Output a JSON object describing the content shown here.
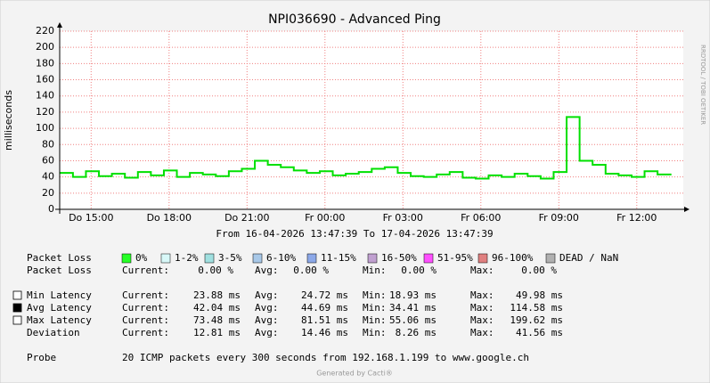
{
  "chart_data": {
    "type": "line",
    "title": "NPI036690 - Advanced Ping",
    "subtitle": "From 16-04-2026 13:47:39 To 17-04-2026 13:47:39",
    "y_label": "milliseconds",
    "side_label": "RRDTOOL / TOBI OETIKER",
    "footer": "Generated by Cacti®",
    "xlim": [
      13.79,
      37.79
    ],
    "xticks": [
      {
        "value": 15,
        "label": "Do 15:00"
      },
      {
        "value": 18,
        "label": "Do 18:00"
      },
      {
        "value": 21,
        "label": "Do 21:00"
      },
      {
        "value": 24,
        "label": "Fr 00:00"
      },
      {
        "value": 27,
        "label": "Fr 03:00"
      },
      {
        "value": 30,
        "label": "Fr 06:00"
      },
      {
        "value": 33,
        "label": "Fr 09:00"
      },
      {
        "value": 36,
        "label": "Fr 12:00"
      }
    ],
    "ylim": [
      0,
      220
    ],
    "yticks": [
      0,
      20,
      40,
      60,
      80,
      100,
      120,
      140,
      160,
      180,
      200,
      220
    ],
    "grid": true,
    "x": [
      13.8,
      14.3,
      14.8,
      15.3,
      15.8,
      16.3,
      16.8,
      17.3,
      17.8,
      18.3,
      18.8,
      19.3,
      19.8,
      20.3,
      20.8,
      21.3,
      21.8,
      22.3,
      22.8,
      23.3,
      23.8,
      24.3,
      24.8,
      25.3,
      25.8,
      26.3,
      26.8,
      27.3,
      27.8,
      28.3,
      28.8,
      29.3,
      29.8,
      30.3,
      30.8,
      31.3,
      31.8,
      32.3,
      32.8,
      33.3,
      33.8,
      34.3,
      34.8,
      35.3,
      35.8,
      36.3,
      36.8,
      37.3
    ],
    "series": [
      {
        "color": "#00e000",
        "values": [
          45,
          40,
          47,
          41,
          44,
          39,
          46,
          42,
          48,
          40,
          45,
          43,
          41,
          47,
          50,
          60,
          55,
          52,
          48,
          45,
          47,
          42,
          44,
          46,
          50,
          52,
          45,
          41,
          40,
          43,
          46,
          39,
          38,
          42,
          40,
          44,
          41,
          38,
          46,
          114,
          60,
          55,
          44,
          42,
          40,
          47,
          43,
          42
        ]
      }
    ],
    "loss_legend": {
      "label": "Packet Loss",
      "items": [
        {
          "name": "0%",
          "color": "#26ff26"
        },
        {
          "name": "1-2%",
          "color": "#d8f8f8"
        },
        {
          "name": "3-5%",
          "color": "#a0e0e0"
        },
        {
          "name": "6-10%",
          "color": "#a8c8e8"
        },
        {
          "name": "11-15%",
          "color": "#8ca8e8"
        },
        {
          "name": "16-50%",
          "color": "#c0a0d0"
        },
        {
          "name": "51-95%",
          "color": "#ff50ff"
        },
        {
          "name": "96-100%",
          "color": "#e08080"
        },
        {
          "name": "DEAD / NaN",
          "color": "#b0b0b0"
        }
      ]
    },
    "stat_headers": [
      "Current:",
      "Avg:",
      "Min:",
      "Max:"
    ],
    "stats": [
      {
        "label": "Packet Loss",
        "values": [
          "0.00 %",
          "0.00 %",
          "0.00 %",
          "0.00 %"
        ]
      },
      {
        "label": "Min Latency",
        "swatch": "#ffffff",
        "values": [
          "23.88 ms",
          "24.72 ms",
          "18.93 ms",
          "49.98 ms"
        ]
      },
      {
        "label": "Avg Latency",
        "swatch": "#000000",
        "values": [
          "42.04 ms",
          "44.69 ms",
          "34.41 ms",
          "114.58 ms"
        ]
      },
      {
        "label": "Max Latency",
        "swatch": "#ffffff",
        "values": [
          "73.48 ms",
          "81.51 ms",
          "55.06 ms",
          "199.62 ms"
        ]
      },
      {
        "label": "Deviation",
        "values": [
          "12.81 ms",
          "14.46 ms",
          "8.26 ms",
          "41.56 ms"
        ]
      }
    ],
    "probe": {
      "label": "Probe",
      "text": "20 ICMP packets every 300 seconds from 192.168.1.199 to www.google.ch"
    }
  }
}
